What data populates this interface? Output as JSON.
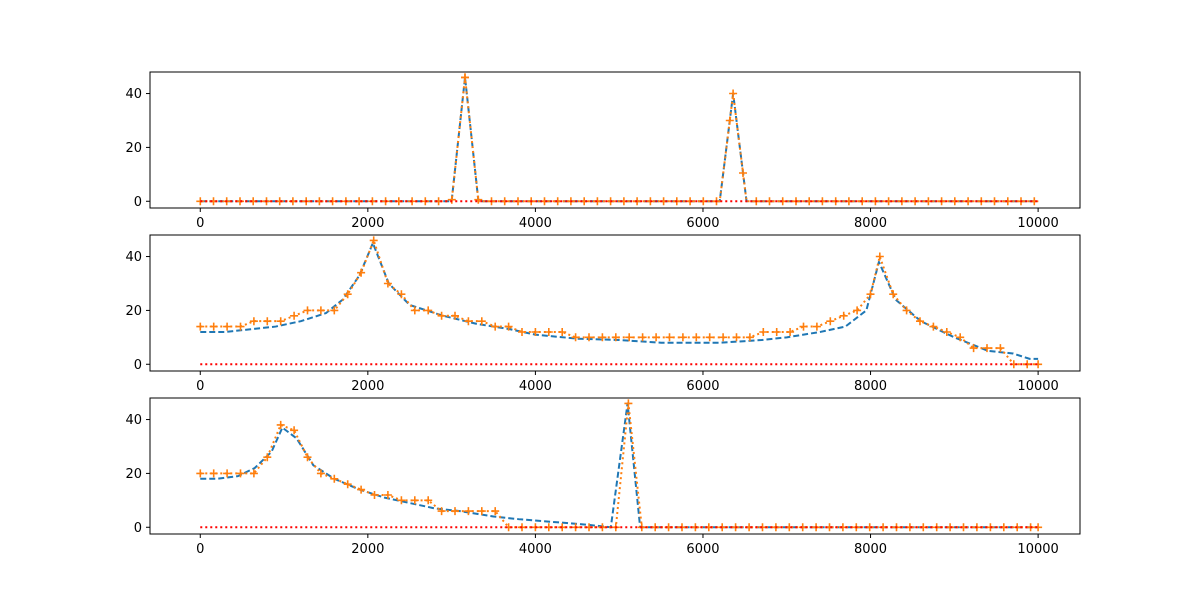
{
  "chart_data": [
    {
      "type": "line",
      "title": "",
      "xlabel": "",
      "ylabel": "",
      "xlim": [
        -600,
        10500
      ],
      "ylim": [
        -2.5,
        48
      ],
      "xticks": [
        0,
        2000,
        4000,
        6000,
        8000,
        10000
      ],
      "yticks": [
        0,
        20,
        40
      ],
      "grid": false,
      "series": [
        {
          "style": "dashed",
          "color": "#1f77b4",
          "points": [
            [
              0,
              0
            ],
            [
              3000,
              0
            ],
            [
              3160,
              46
            ],
            [
              3320,
              0
            ],
            [
              6200,
              0
            ],
            [
              6360,
              40
            ],
            [
              6520,
              0
            ],
            [
              10000,
              0
            ]
          ]
        },
        {
          "style": "dotted-plus-markers",
          "color": "#ff7f0e",
          "points": [
            [
              0,
              0
            ],
            [
              3000,
              0
            ],
            [
              3160,
              46
            ],
            [
              3320,
              0
            ],
            [
              6200,
              0
            ],
            [
              6360,
              40
            ],
            [
              6520,
              0
            ],
            [
              10000,
              0
            ]
          ],
          "markers": "plus",
          "marker_step": 158
        },
        {
          "style": "dotted",
          "color": "#ff0000",
          "points": [
            [
              0,
              0
            ],
            [
              10000,
              0
            ]
          ]
        }
      ]
    },
    {
      "type": "line",
      "title": "",
      "xlabel": "",
      "ylabel": "",
      "xlim": [
        -600,
        10500
      ],
      "ylim": [
        -2.5,
        48
      ],
      "xticks": [
        0,
        2000,
        4000,
        6000,
        8000,
        10000
      ],
      "yticks": [
        0,
        20,
        40
      ],
      "grid": false,
      "series": [
        {
          "style": "dashed",
          "color": "#1f77b4",
          "points": [
            [
              0,
              12
            ],
            [
              300,
              12
            ],
            [
              600,
              13
            ],
            [
              900,
              14
            ],
            [
              1200,
              16
            ],
            [
              1500,
              19
            ],
            [
              1700,
              24
            ],
            [
              1900,
              33
            ],
            [
              2060,
              45
            ],
            [
              2250,
              30
            ],
            [
              2500,
              22
            ],
            [
              2900,
              18
            ],
            [
              3300,
              15
            ],
            [
              3700,
              13
            ],
            [
              4000,
              11
            ],
            [
              4500,
              9.5
            ],
            [
              5000,
              9
            ],
            [
              5500,
              8
            ],
            [
              6200,
              8
            ],
            [
              6700,
              9
            ],
            [
              7000,
              10
            ],
            [
              7400,
              12
            ],
            [
              7700,
              14
            ],
            [
              7950,
              20
            ],
            [
              8100,
              38
            ],
            [
              8300,
              24
            ],
            [
              8600,
              16
            ],
            [
              9000,
              10
            ],
            [
              9400,
              5
            ],
            [
              9700,
              4
            ],
            [
              9900,
              2
            ],
            [
              10000,
              2
            ]
          ]
        },
        {
          "style": "dotted-plus-markers",
          "color": "#ff7f0e",
          "points": [
            [
              0,
              14
            ],
            [
              160,
              14
            ],
            [
              320,
              14
            ],
            [
              480,
              14
            ],
            [
              640,
              16
            ],
            [
              800,
              16
            ],
            [
              960,
              16
            ],
            [
              1120,
              18
            ],
            [
              1280,
              20
            ],
            [
              1440,
              20
            ],
            [
              1600,
              20
            ],
            [
              1760,
              26
            ],
            [
              1920,
              34
            ],
            [
              2070,
              46
            ],
            [
              2240,
              30
            ],
            [
              2400,
              26
            ],
            [
              2560,
              20
            ],
            [
              2720,
              20
            ],
            [
              2880,
              18
            ],
            [
              3040,
              18
            ],
            [
              3200,
              16
            ],
            [
              3360,
              16
            ],
            [
              3520,
              14
            ],
            [
              3680,
              14
            ],
            [
              3840,
              12
            ],
            [
              4000,
              12
            ],
            [
              4160,
              12
            ],
            [
              4320,
              12
            ],
            [
              4480,
              10
            ],
            [
              4640,
              10
            ],
            [
              4800,
              10
            ],
            [
              4960,
              10
            ],
            [
              5120,
              10
            ],
            [
              5280,
              10
            ],
            [
              5440,
              10
            ],
            [
              5600,
              10
            ],
            [
              5760,
              10
            ],
            [
              5920,
              10
            ],
            [
              6080,
              10
            ],
            [
              6240,
              10
            ],
            [
              6400,
              10
            ],
            [
              6560,
              10
            ],
            [
              6720,
              12
            ],
            [
              6880,
              12
            ],
            [
              7040,
              12
            ],
            [
              7200,
              14
            ],
            [
              7360,
              14
            ],
            [
              7520,
              16
            ],
            [
              7680,
              18
            ],
            [
              7840,
              20
            ],
            [
              8000,
              26
            ],
            [
              8110,
              40
            ],
            [
              8270,
              26
            ],
            [
              8430,
              20
            ],
            [
              8590,
              16
            ],
            [
              8750,
              14
            ],
            [
              8910,
              12
            ],
            [
              9070,
              10
            ],
            [
              9230,
              6
            ],
            [
              9390,
              6
            ],
            [
              9550,
              6
            ],
            [
              9710,
              0
            ],
            [
              9870,
              0
            ],
            [
              10000,
              0
            ]
          ],
          "markers": "plus",
          "marker_step": 1
        },
        {
          "style": "dotted",
          "color": "#ff0000",
          "points": [
            [
              0,
              0
            ],
            [
              10000,
              0
            ]
          ]
        }
      ]
    },
    {
      "type": "line",
      "title": "",
      "xlabel": "",
      "ylabel": "",
      "xlim": [
        -600,
        10500
      ],
      "ylim": [
        -2.5,
        48
      ],
      "xticks": [
        0,
        2000,
        4000,
        6000,
        8000,
        10000
      ],
      "yticks": [
        0,
        20,
        40
      ],
      "grid": false,
      "series": [
        {
          "style": "dashed",
          "color": "#1f77b4",
          "points": [
            [
              0,
              18
            ],
            [
              200,
              18
            ],
            [
              450,
              19
            ],
            [
              650,
              22
            ],
            [
              850,
              28
            ],
            [
              980,
              37
            ],
            [
              1150,
              33
            ],
            [
              1350,
              23
            ],
            [
              1600,
              18
            ],
            [
              1900,
              14
            ],
            [
              2200,
              11
            ],
            [
              2500,
              9
            ],
            [
              2800,
              7
            ],
            [
              3100,
              6
            ],
            [
              3500,
              4
            ],
            [
              3800,
              3
            ],
            [
              4200,
              2
            ],
            [
              4600,
              1
            ],
            [
              4900,
              0
            ],
            [
              5100,
              46
            ],
            [
              5250,
              0
            ],
            [
              10000,
              0
            ]
          ]
        },
        {
          "style": "dotted-plus-markers",
          "color": "#ff7f0e",
          "points": [
            [
              0,
              20
            ],
            [
              160,
              20
            ],
            [
              320,
              20
            ],
            [
              480,
              20
            ],
            [
              640,
              20
            ],
            [
              800,
              26
            ],
            [
              960,
              38
            ],
            [
              1120,
              36
            ],
            [
              1280,
              26
            ],
            [
              1440,
              20
            ],
            [
              1600,
              18
            ],
            [
              1760,
              16
            ],
            [
              1920,
              14
            ],
            [
              2080,
              12
            ],
            [
              2240,
              12
            ],
            [
              2400,
              10
            ],
            [
              2560,
              10
            ],
            [
              2720,
              10
            ],
            [
              2880,
              6
            ],
            [
              3040,
              6
            ],
            [
              3200,
              6
            ],
            [
              3360,
              6
            ],
            [
              3520,
              6
            ],
            [
              3680,
              0
            ],
            [
              3840,
              0
            ],
            [
              4000,
              0
            ],
            [
              4160,
              0
            ],
            [
              4320,
              0
            ],
            [
              4480,
              0
            ],
            [
              4640,
              0
            ],
            [
              4800,
              0
            ],
            [
              4960,
              0
            ],
            [
              5110,
              46
            ],
            [
              5270,
              0
            ],
            [
              5430,
              0
            ],
            [
              5590,
              0
            ],
            [
              5750,
              0
            ],
            [
              5910,
              0
            ],
            [
              6070,
              0
            ],
            [
              6230,
              0
            ],
            [
              6390,
              0
            ],
            [
              6550,
              0
            ],
            [
              6710,
              0
            ],
            [
              6870,
              0
            ],
            [
              7030,
              0
            ],
            [
              7190,
              0
            ],
            [
              7350,
              0
            ],
            [
              7510,
              0
            ],
            [
              7670,
              0
            ],
            [
              7830,
              0
            ],
            [
              7990,
              0
            ],
            [
              8150,
              0
            ],
            [
              8310,
              0
            ],
            [
              8470,
              0
            ],
            [
              8630,
              0
            ],
            [
              8790,
              0
            ],
            [
              8950,
              0
            ],
            [
              9110,
              0
            ],
            [
              9270,
              0
            ],
            [
              9430,
              0
            ],
            [
              9590,
              0
            ],
            [
              9750,
              0
            ],
            [
              9910,
              0
            ],
            [
              10000,
              0
            ]
          ],
          "markers": "plus",
          "marker_step": 1
        },
        {
          "style": "dotted",
          "color": "#ff0000",
          "points": [
            [
              0,
              0
            ],
            [
              10000,
              0
            ]
          ]
        }
      ]
    }
  ]
}
